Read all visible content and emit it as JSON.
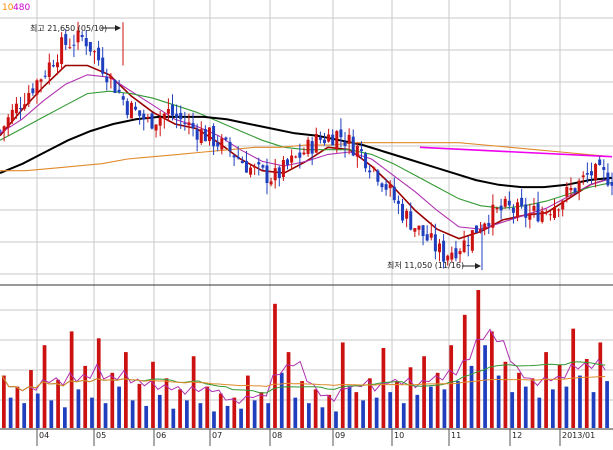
{
  "header": {
    "legend_items": [
      {
        "text": "10",
        "color": "#ff8c00"
      },
      {
        "text": "480",
        "color": "#cc00cc"
      }
    ]
  },
  "annotations": {
    "high_label": "최고 21,650 (05/10)",
    "low_label": "최저 11,050 (11/16)"
  },
  "colors": {
    "up": "#cc1111",
    "down": "#1f3fbf",
    "ma_red": "#990000",
    "ma_purple": "#b030b0",
    "ma_green": "#339933",
    "ma_black": "#000000",
    "ma_orange": "#e08a2a",
    "trend_line": "#ee00ee",
    "grid": "#c8c8c8"
  },
  "chart_data": {
    "type": "line",
    "title": "",
    "x_tick_labels": [
      "04",
      "05",
      "06",
      "07",
      "08",
      "09",
      "10",
      "11",
      "12",
      "2013/01"
    ],
    "price": {
      "high": 21650,
      "high_date": "05/10",
      "low": 11050,
      "low_date": "11/16",
      "close_path": [
        17000,
        18300,
        19400,
        20700,
        21000,
        19600,
        18100,
        17400,
        17800,
        17200,
        16700,
        16100,
        15300,
        15000,
        15800,
        16600,
        16900,
        16200,
        15100,
        13600,
        12600,
        11700,
        12200,
        13300,
        13700,
        13400,
        13700,
        14400,
        15200,
        15000
      ],
      "series": [
        {
          "key": "ma_red",
          "values": [
            16800,
            17900,
            18900,
            19800,
            19800,
            19400,
            18500,
            17800,
            17300,
            17100,
            16500,
            15800,
            15300,
            15200,
            15700,
            16300,
            16200,
            15500,
            14600,
            13600,
            12800,
            12400,
            12700,
            13200,
            13400,
            13500,
            14100,
            14700,
            15000
          ]
        },
        {
          "key": "ma_purple",
          "values": [
            16900,
            17500,
            18300,
            19000,
            19400,
            19300,
            18700,
            18100,
            17500,
            17200,
            16800,
            16200,
            15700,
            15500,
            15700,
            16000,
            16100,
            15800,
            15100,
            14400,
            13600,
            12900,
            12800,
            13100,
            13400,
            13700,
            14200,
            14700,
            15000
          ]
        },
        {
          "key": "ma_green",
          "values": [
            16600,
            17100,
            17600,
            18100,
            18600,
            18700,
            18600,
            18400,
            18100,
            17800,
            17400,
            17000,
            16600,
            16300,
            16200,
            16200,
            16200,
            16000,
            15600,
            15100,
            14600,
            14100,
            13800,
            13700,
            13800,
            14000,
            14300,
            14600,
            14800
          ]
        },
        {
          "key": "ma_black",
          "values": [
            15200,
            15600,
            16100,
            16600,
            17000,
            17300,
            17500,
            17600,
            17600,
            17600,
            17500,
            17300,
            17100,
            16900,
            16800,
            16600,
            16400,
            16100,
            15800,
            15500,
            15200,
            14900,
            14700,
            14600,
            14600,
            14700,
            14900,
            15000
          ]
        },
        {
          "key": "ma_orange",
          "values": [
            15300,
            15300,
            15400,
            15500,
            15600,
            15800,
            15900,
            16000,
            16100,
            16200,
            16300,
            16300,
            16400,
            16400,
            16500,
            16500,
            16500,
            16500,
            16500,
            16400,
            16300,
            16200,
            16100,
            16000,
            15900
          ]
        }
      ],
      "trend_line": [
        16300,
        15900
      ]
    },
    "volume": {
      "ylim": [
        0,
        100
      ],
      "bars": [
        {
          "v": 38,
          "up": true
        },
        {
          "v": 22,
          "up": false
        },
        {
          "v": 30,
          "up": true
        },
        {
          "v": 18,
          "up": false
        },
        {
          "v": 42,
          "up": true
        },
        {
          "v": 25,
          "up": false
        },
        {
          "v": 60,
          "up": true
        },
        {
          "v": 20,
          "up": false
        },
        {
          "v": 35,
          "up": true
        },
        {
          "v": 15,
          "up": false
        },
        {
          "v": 70,
          "up": true
        },
        {
          "v": 28,
          "up": false
        },
        {
          "v": 45,
          "up": true
        },
        {
          "v": 22,
          "up": false
        },
        {
          "v": 65,
          "up": true
        },
        {
          "v": 18,
          "up": false
        },
        {
          "v": 40,
          "up": true
        },
        {
          "v": 30,
          "up": false
        },
        {
          "v": 55,
          "up": true
        },
        {
          "v": 20,
          "up": false
        },
        {
          "v": 32,
          "up": true
        },
        {
          "v": 16,
          "up": false
        },
        {
          "v": 48,
          "up": true
        },
        {
          "v": 24,
          "up": false
        },
        {
          "v": 36,
          "up": true
        },
        {
          "v": 14,
          "up": false
        },
        {
          "v": 28,
          "up": true
        },
        {
          "v": 20,
          "up": false
        },
        {
          "v": 52,
          "up": true
        },
        {
          "v": 18,
          "up": false
        },
        {
          "v": 30,
          "up": true
        },
        {
          "v": 12,
          "up": false
        },
        {
          "v": 25,
          "up": true
        },
        {
          "v": 16,
          "up": false
        },
        {
          "v": 22,
          "up": true
        },
        {
          "v": 14,
          "up": false
        },
        {
          "v": 38,
          "up": true
        },
        {
          "v": 20,
          "up": false
        },
        {
          "v": 26,
          "up": true
        },
        {
          "v": 18,
          "up": false
        },
        {
          "v": 90,
          "up": true
        },
        {
          "v": 40,
          "up": false
        },
        {
          "v": 55,
          "up": true
        },
        {
          "v": 22,
          "up": false
        },
        {
          "v": 34,
          "up": true
        },
        {
          "v": 18,
          "up": false
        },
        {
          "v": 28,
          "up": true
        },
        {
          "v": 15,
          "up": false
        },
        {
          "v": 24,
          "up": true
        },
        {
          "v": 12,
          "up": false
        },
        {
          "v": 62,
          "up": true
        },
        {
          "v": 30,
          "up": false
        },
        {
          "v": 26,
          "up": true
        },
        {
          "v": 20,
          "up": false
        },
        {
          "v": 36,
          "up": true
        },
        {
          "v": 22,
          "up": false
        },
        {
          "v": 58,
          "up": true
        },
        {
          "v": 26,
          "up": false
        },
        {
          "v": 34,
          "up": true
        },
        {
          "v": 18,
          "up": false
        },
        {
          "v": 44,
          "up": true
        },
        {
          "v": 24,
          "up": false
        },
        {
          "v": 52,
          "up": true
        },
        {
          "v": 30,
          "up": false
        },
        {
          "v": 40,
          "up": true
        },
        {
          "v": 28,
          "up": false
        },
        {
          "v": 60,
          "up": true
        },
        {
          "v": 34,
          "up": false
        },
        {
          "v": 82,
          "up": true
        },
        {
          "v": 45,
          "up": false
        },
        {
          "v": 100,
          "up": true
        },
        {
          "v": 60,
          "up": false
        },
        {
          "v": 70,
          "up": true
        },
        {
          "v": 38,
          "up": false
        },
        {
          "v": 48,
          "up": true
        },
        {
          "v": 26,
          "up": false
        },
        {
          "v": 40,
          "up": true
        },
        {
          "v": 30,
          "up": false
        },
        {
          "v": 36,
          "up": true
        },
        {
          "v": 22,
          "up": false
        },
        {
          "v": 55,
          "up": true
        },
        {
          "v": 28,
          "up": false
        },
        {
          "v": 46,
          "up": true
        },
        {
          "v": 30,
          "up": false
        },
        {
          "v": 72,
          "up": true
        },
        {
          "v": 38,
          "up": false
        },
        {
          "v": 50,
          "up": true
        },
        {
          "v": 26,
          "up": false
        },
        {
          "v": 62,
          "up": true
        },
        {
          "v": 34,
          "up": false
        }
      ]
    }
  }
}
